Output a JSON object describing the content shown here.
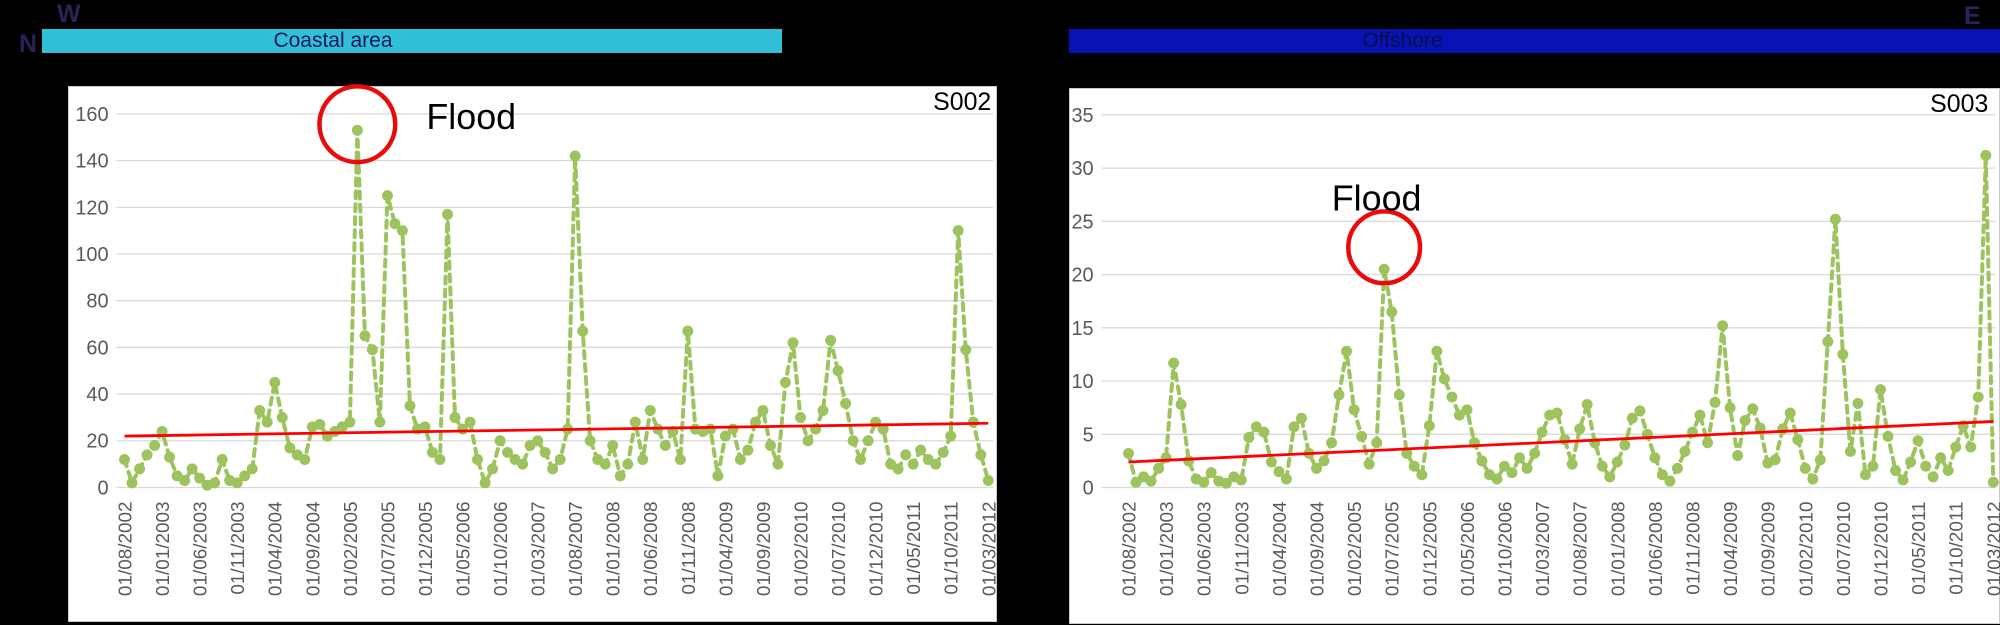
{
  "compass": {
    "west": "W",
    "north": "N",
    "east": "E",
    "color": "#2b2358"
  },
  "section_headers": [
    {
      "label": "Coastal area",
      "bg_color": "#32bfd8",
      "text_color": "#17175c"
    },
    {
      "label": "Offshore",
      "bg_color": "#0813b4",
      "text_color": "#0c0c4e"
    }
  ],
  "chart_data": [
    {
      "type": "line",
      "station": "S002",
      "area": "Coastal area",
      "annotation": "Flood",
      "annotation_color": "#e90b0b",
      "series_color": "#9dc35e",
      "axis_text_color": "#595959",
      "gridline_color": "#d9d9d9",
      "ylim": [
        0,
        160
      ],
      "ytick_step": 20,
      "x_freq": "monthly",
      "x_start": "01/08/2002",
      "x_end": "01/03/2012",
      "x_tick_every": 5,
      "x_tick_labels": [
        "01/08/2002",
        "01/01/2003",
        "01/06/2003",
        "01/11/2003",
        "01/04/2004",
        "01/09/2004",
        "01/02/2005",
        "01/07/2005",
        "01/12/2005",
        "01/05/2006",
        "01/10/2006",
        "01/03/2007",
        "01/08/2007",
        "01/01/2008",
        "01/06/2008",
        "01/11/2008",
        "01/04/2009",
        "01/09/2009",
        "01/02/2010",
        "01/07/2010",
        "01/12/2010",
        "01/05/2011",
        "01/10/2011",
        "01/03/2012"
      ],
      "values": [
        12,
        2,
        8,
        14,
        18,
        24,
        13,
        5,
        3,
        8,
        4,
        1,
        2,
        12,
        3,
        2,
        5,
        8,
        33,
        28,
        45,
        30,
        17,
        14,
        12,
        26,
        27,
        22,
        24,
        26,
        28,
        153,
        65,
        59,
        28,
        125,
        113,
        110,
        35,
        25,
        26,
        15,
        12,
        117,
        30,
        25,
        28,
        12,
        2,
        8,
        20,
        15,
        12,
        10,
        18,
        20,
        15,
        8,
        12,
        25,
        142,
        67,
        20,
        12,
        10,
        18,
        5,
        10,
        28,
        12,
        33,
        25,
        18,
        24,
        12,
        67,
        25,
        24,
        25,
        5,
        22,
        25,
        12,
        16,
        28,
        33,
        18,
        10,
        45,
        62,
        30,
        20,
        25,
        33,
        63,
        50,
        36,
        20,
        12,
        20,
        28,
        25,
        10,
        8,
        14,
        10,
        16,
        12,
        10,
        15,
        22,
        110,
        59,
        28,
        14,
        3
      ],
      "flood_index": 31,
      "flood_value": 153,
      "trendline": {
        "start": 22,
        "end": 27.5,
        "color": "#ff0000"
      },
      "legend": "none",
      "grid": "horizontal"
    },
    {
      "type": "line",
      "station": "S003",
      "area": "Offshore",
      "annotation": "Flood",
      "annotation_color": "#e90b0b",
      "series_color": "#9dc35e",
      "axis_text_color": "#595959",
      "gridline_color": "#d9d9d9",
      "ylim": [
        0,
        35
      ],
      "ytick_step": 5,
      "x_freq": "monthly",
      "x_start": "01/08/2002",
      "x_end": "01/03/2012",
      "x_tick_every": 5,
      "x_tick_labels": [
        "01/08/2002",
        "01/01/2003",
        "01/06/2003",
        "01/11/2003",
        "01/04/2004",
        "01/09/2004",
        "01/02/2005",
        "01/07/2005",
        "01/12/2005",
        "01/05/2006",
        "01/10/2006",
        "01/03/2007",
        "01/08/2007",
        "01/01/2008",
        "01/06/2008",
        "01/11/2008",
        "01/04/2009",
        "01/09/2009",
        "01/02/2010",
        "01/07/2010",
        "01/12/2010",
        "01/05/2011",
        "01/10/2011",
        "01/03/2012"
      ],
      "values": [
        3.2,
        0.5,
        1,
        0.6,
        1.8,
        2.8,
        11.7,
        7.8,
        2.5,
        0.8,
        0.5,
        1.4,
        0.6,
        0.4,
        1,
        0.7,
        4.7,
        5.7,
        5.2,
        2.4,
        1.5,
        0.8,
        5.7,
        6.5,
        3.2,
        1.8,
        2.5,
        4.2,
        8.7,
        12.8,
        7.3,
        4.8,
        2.2,
        4.2,
        20.5,
        16.5,
        8.7,
        3.2,
        2,
        1.2,
        5.8,
        12.8,
        10.2,
        8.5,
        6.8,
        7.3,
        4.2,
        2.5,
        1.2,
        0.8,
        2,
        1.4,
        2.8,
        1.8,
        3.2,
        5.2,
        6.8,
        7,
        4.5,
        2.2,
        5.5,
        7.8,
        4.2,
        2,
        1,
        2.4,
        4,
        6.5,
        7.2,
        5,
        2.8,
        1.2,
        0.6,
        1.8,
        3.4,
        5.2,
        6.8,
        4.2,
        8,
        15.2,
        7.5,
        3,
        6.3,
        7.4,
        5.6,
        2.3,
        2.6,
        5.5,
        7,
        4.5,
        1.8,
        0.8,
        2.6,
        13.7,
        25.2,
        12.5,
        3.4,
        7.9,
        1.2,
        2,
        9.2,
        4.8,
        1.6,
        0.7,
        2.4,
        4.4,
        2,
        1,
        2.8,
        1.6,
        3.8,
        5.8,
        3.8,
        8.5,
        31.2,
        0.5
      ],
      "flood_index": 34,
      "flood_value": 20.5,
      "trendline": {
        "start": 2.4,
        "end": 6.2,
        "color": "#ff0000"
      },
      "legend": "none",
      "grid": "horizontal"
    }
  ]
}
